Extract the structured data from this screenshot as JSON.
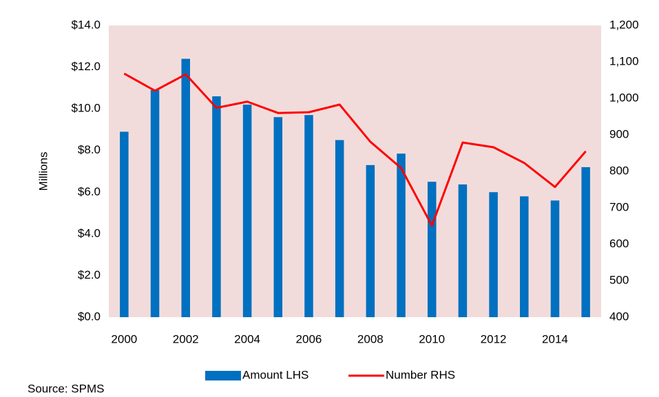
{
  "chart_data": {
    "type": "bar_line",
    "y_label": "Millions",
    "source": "Source: SPMS",
    "categories": [
      "2000",
      null,
      "2002",
      null,
      "2004",
      null,
      "2006",
      null,
      "2008",
      null,
      "2010",
      null,
      "2012",
      null,
      "2014",
      null
    ],
    "series": [
      {
        "name": "Amount LHS",
        "color": "#0070c0",
        "type": "bar",
        "values": [
          8.9,
          10.9,
          12.4,
          10.6,
          10.2,
          9.6,
          9.7,
          8.5,
          7.3,
          7.85,
          6.5,
          6.37,
          6.0,
          5.8,
          5.6,
          7.2
        ]
      },
      {
        "name": "Number RHS",
        "color": "#ff0000",
        "type": "line",
        "axis": "y2",
        "values": [
          1068,
          1021,
          1066,
          974,
          991,
          960,
          962,
          983,
          881,
          809,
          651,
          879,
          866,
          823,
          757,
          855
        ]
      }
    ],
    "ylim": [
      0,
      14
    ],
    "yticks": [
      {
        "value": 0,
        "label": "$0.0"
      },
      {
        "value": 2,
        "label": "$2.0"
      },
      {
        "value": 4,
        "label": "$4.0"
      },
      {
        "value": 6,
        "label": "$6.0"
      },
      {
        "value": 8,
        "label": "$8.0"
      },
      {
        "value": 10,
        "label": "$10.0"
      },
      {
        "value": 12,
        "label": "$12.0"
      },
      {
        "value": 14,
        "label": "$14.0"
      }
    ],
    "y2lim": [
      400,
      1200
    ],
    "y2ticks": [
      400,
      500,
      600,
      700,
      800,
      900,
      {
        "value": 1000,
        "label": "1,000"
      },
      {
        "value": 1100,
        "label": "1,100"
      },
      {
        "value": 1200,
        "label": "1,200"
      }
    ],
    "plot_background": "#f2dcdb",
    "legend": "bottom"
  }
}
